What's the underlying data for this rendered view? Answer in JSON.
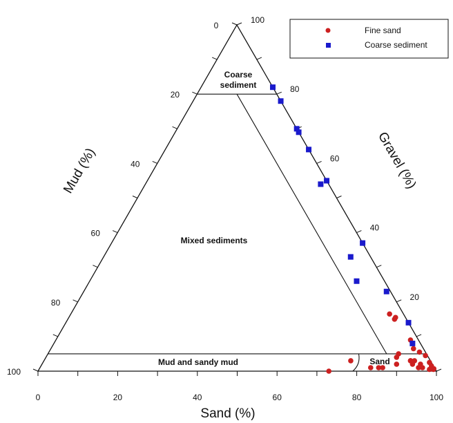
{
  "chart_data": {
    "type": "scatter",
    "subtype": "ternary",
    "axes": {
      "sand": {
        "label": "Sand (%)",
        "ticks": [
          "0",
          "20",
          "40",
          "60",
          "80",
          "100"
        ]
      },
      "mud": {
        "label": "Mud (%)",
        "ticks": [
          "0",
          "20",
          "40",
          "60",
          "80",
          "100"
        ]
      },
      "gravel": {
        "label": "Gravel (%)",
        "ticks": [
          "100",
          "80",
          "60",
          "40",
          "20"
        ]
      }
    },
    "grid": false,
    "legend_position": "top-right",
    "regions": [
      {
        "name": "coarse-sediment",
        "lines": [
          "Coarse",
          "sediment"
        ]
      },
      {
        "name": "mixed-sediments",
        "lines": [
          "Mixed sediments"
        ]
      },
      {
        "name": "mud-and-sandy-mud",
        "lines": [
          "Mud and sandy mud"
        ]
      },
      {
        "name": "sand",
        "lines": [
          "Sand"
        ]
      }
    ],
    "series": [
      {
        "name": "Fine sand",
        "marker": "circle",
        "color": "#cc2020",
        "points": [
          {
            "sand": 82,
            "mud": 3.0,
            "gravel": 15.0
          },
          {
            "sand": 82,
            "mud": 2.5,
            "gravel": 15.5
          },
          {
            "sand": 80,
            "mud": 3.5,
            "gravel": 16.5
          },
          {
            "sand": 90,
            "mud": 2.0,
            "gravel": 8.0
          },
          {
            "sand": 89,
            "mud": 2.0,
            "gravel": 9.0
          },
          {
            "sand": 91,
            "mud": 2.5,
            "gravel": 6.5
          },
          {
            "sand": 93,
            "mud": 1.5,
            "gravel": 5.5
          },
          {
            "sand": 95,
            "mud": 0.5,
            "gravel": 4.5
          },
          {
            "sand": 97,
            "mud": 0.5,
            "gravel": 2.5
          },
          {
            "sand": 98,
            "mud": 0.5,
            "gravel": 1.5
          },
          {
            "sand": 99,
            "mud": 0.3,
            "gravel": 0.7
          },
          {
            "sand": 92,
            "mud": 5.0,
            "gravel": 3.0
          },
          {
            "sand": 88,
            "mud": 7.0,
            "gravel": 5.0
          },
          {
            "sand": 92,
            "mud": 5.0,
            "gravel": 3.0
          },
          {
            "sand": 93,
            "mud": 5.0,
            "gravel": 2.0
          },
          {
            "sand": 95,
            "mud": 4.0,
            "gravel": 1.0
          },
          {
            "sand": 96,
            "mud": 3.0,
            "gravel": 1.0
          },
          {
            "sand": 98,
            "mud": 1.5,
            "gravel": 0.5
          },
          {
            "sand": 99,
            "mud": 0.5,
            "gravel": 0.5
          },
          {
            "sand": 93,
            "mud": 4.0,
            "gravel": 3.0
          },
          {
            "sand": 95,
            "mud": 3.0,
            "gravel": 2.0
          },
          {
            "sand": 89,
            "mud": 9.0,
            "gravel": 2.0
          },
          {
            "sand": 88,
            "mud": 8.0,
            "gravel": 4.0
          },
          {
            "sand": 86,
            "mud": 13.0,
            "gravel": 1.0
          },
          {
            "sand": 85,
            "mud": 14.0,
            "gravel": 1.0
          },
          {
            "sand": 83,
            "mud": 16.0,
            "gravel": 1.0
          },
          {
            "sand": 77,
            "mud": 20.0,
            "gravel": 3.0
          },
          {
            "sand": 73,
            "mud": 27.0,
            "gravel": 0.0
          }
        ]
      },
      {
        "name": "Coarse sediment",
        "marker": "square",
        "color": "#1a1acc",
        "points": [
          {
            "sand": 18,
            "mud": 0.0,
            "gravel": 82.0
          },
          {
            "sand": 22,
            "mud": 0.0,
            "gravel": 78.0
          },
          {
            "sand": 30,
            "mud": 0.0,
            "gravel": 70.0
          },
          {
            "sand": 31,
            "mud": 0.0,
            "gravel": 69.0
          },
          {
            "sand": 36,
            "mud": 0.0,
            "gravel": 64.0
          },
          {
            "sand": 45,
            "mud": 0.0,
            "gravel": 55.0
          },
          {
            "sand": 44,
            "mud": 2.0,
            "gravel": 54.0
          },
          {
            "sand": 63,
            "mud": 0.0,
            "gravel": 37.0
          },
          {
            "sand": 62,
            "mud": 5.0,
            "gravel": 33.0
          },
          {
            "sand": 67,
            "mud": 7.0,
            "gravel": 26.0
          },
          {
            "sand": 76,
            "mud": 1.0,
            "gravel": 23.0
          },
          {
            "sand": 86,
            "mud": 0.0,
            "gravel": 14.0
          },
          {
            "sand": 90,
            "mud": 2.0,
            "gravel": 8.0
          }
        ]
      }
    ]
  }
}
